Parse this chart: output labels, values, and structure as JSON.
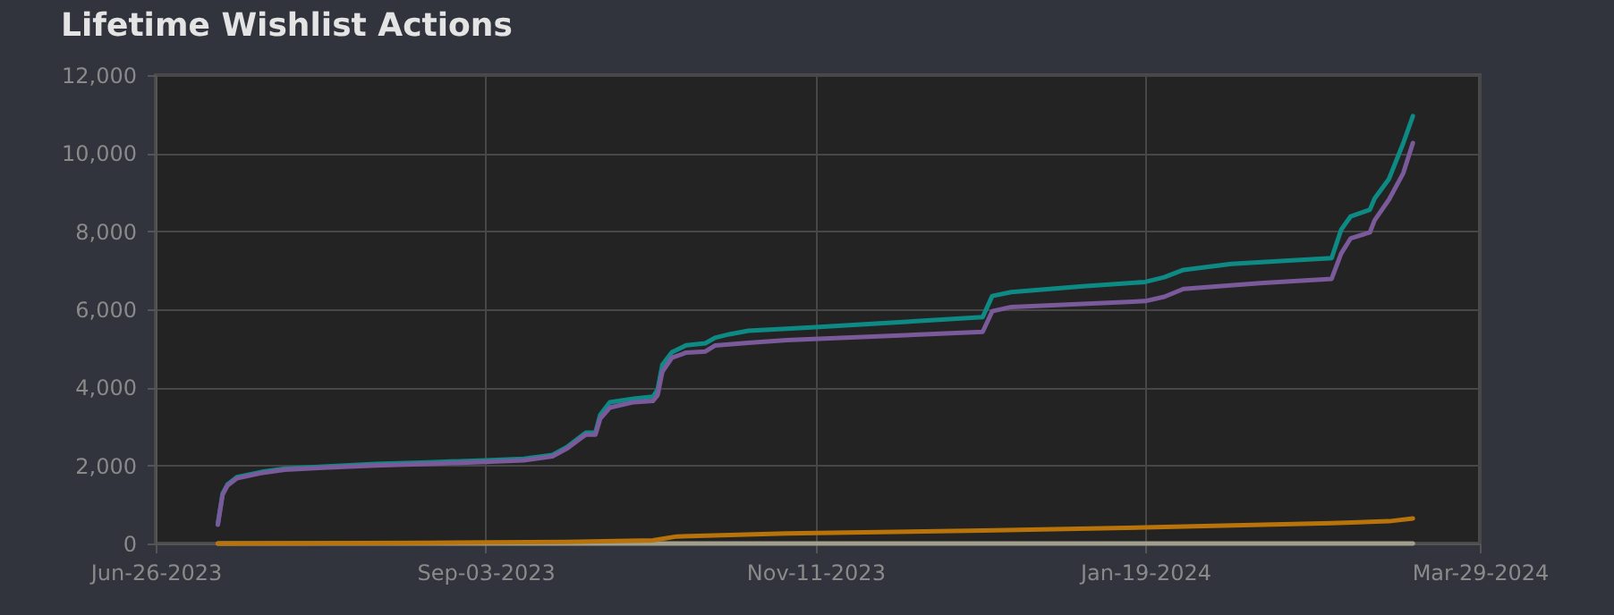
{
  "chart_data": {
    "type": "line",
    "title": "Lifetime Wishlist Actions",
    "xlim": [
      "2023-06-26",
      "2024-03-29"
    ],
    "xticks": [
      {
        "value": "2023-06-26",
        "label": "Jun-26-2023"
      },
      {
        "value": "2023-09-03",
        "label": "Sep-03-2023"
      },
      {
        "value": "2023-11-11",
        "label": "Nov-11-2023"
      },
      {
        "value": "2024-01-19",
        "label": "Jan-19-2024"
      },
      {
        "value": "2024-03-29",
        "label": "Mar-29-2024"
      }
    ],
    "ylim": [
      0,
      12000
    ],
    "yticks": [
      0,
      {
        "value": 2000,
        "label": "2,000"
      },
      {
        "value": 4000,
        "label": "4,000"
      },
      {
        "value": 6000,
        "label": "6,000"
      },
      {
        "value": 8000,
        "label": "8,000"
      },
      {
        "value": 10000,
        "label": "10,000"
      },
      {
        "value": 12000,
        "label": "12,000"
      }
    ],
    "grid": true,
    "marker": "none",
    "line_style": "solid",
    "series": [
      {
        "color": "#a39f8e",
        "x": [
          "2023-07-09",
          "2024-03-15"
        ],
        "values": [
          0,
          0
        ]
      },
      {
        "color": "#b8730a",
        "x": [
          "2023-07-09",
          "2023-08-22",
          "2023-09-20",
          "2023-10-08",
          "2023-10-13",
          "2023-11-05",
          "2023-12-16",
          "2024-01-19",
          "2024-02-27",
          "2024-03-10",
          "2024-03-15"
        ],
        "values": [
          0,
          20,
          40,
          80,
          180,
          260,
          330,
          410,
          520,
          570,
          640
        ]
      },
      {
        "color": "#0e8a85",
        "x": [
          "2023-07-09",
          "2023-07-10",
          "2023-07-11",
          "2023-07-13",
          "2023-07-18",
          "2023-07-23",
          "2023-07-31",
          "2023-08-11",
          "2023-08-22",
          "2023-09-03",
          "2023-09-11",
          "2023-09-17",
          "2023-09-20",
          "2023-09-23",
          "2023-09-24",
          "2023-09-26",
          "2023-09-27",
          "2023-09-29",
          "2023-10-04",
          "2023-10-08",
          "2023-10-09",
          "2023-10-10",
          "2023-10-12",
          "2023-10-15",
          "2023-10-19",
          "2023-10-21",
          "2023-10-24",
          "2023-10-28",
          "2023-11-05",
          "2023-11-11",
          "2023-11-30",
          "2023-12-16",
          "2023-12-18",
          "2023-12-22",
          "2024-01-06",
          "2024-01-19",
          "2024-01-23",
          "2024-01-27",
          "2024-02-06",
          "2024-02-18",
          "2024-02-27",
          "2024-02-29",
          "2024-03-02",
          "2024-03-06",
          "2024-03-07",
          "2024-03-10",
          "2024-03-13",
          "2024-03-15"
        ],
        "values": [
          500,
          1280,
          1510,
          1700,
          1830,
          1920,
          1970,
          2040,
          2080,
          2130,
          2170,
          2270,
          2470,
          2750,
          2840,
          2840,
          3300,
          3620,
          3710,
          3760,
          3940,
          4580,
          4900,
          5080,
          5130,
          5270,
          5360,
          5450,
          5500,
          5540,
          5680,
          5800,
          6340,
          6440,
          6590,
          6700,
          6820,
          7010,
          7160,
          7250,
          7310,
          8040,
          8380,
          8550,
          8840,
          9340,
          10260,
          10950
        ]
      },
      {
        "color": "#7a5a9a",
        "x": [
          "2023-07-09",
          "2023-07-10",
          "2023-07-11",
          "2023-07-13",
          "2023-07-18",
          "2023-07-23",
          "2023-07-31",
          "2023-08-11",
          "2023-08-22",
          "2023-09-03",
          "2023-09-11",
          "2023-09-17",
          "2023-09-20",
          "2023-09-23",
          "2023-09-24",
          "2023-09-26",
          "2023-09-27",
          "2023-09-29",
          "2023-10-04",
          "2023-10-08",
          "2023-10-09",
          "2023-10-10",
          "2023-10-12",
          "2023-10-15",
          "2023-10-19",
          "2023-10-21",
          "2023-10-28",
          "2023-11-05",
          "2023-12-16",
          "2023-12-18",
          "2023-12-22",
          "2024-01-19",
          "2024-01-23",
          "2024-01-27",
          "2024-02-12",
          "2024-02-27",
          "2024-02-29",
          "2024-03-02",
          "2024-03-06",
          "2024-03-07",
          "2024-03-10",
          "2024-03-13",
          "2024-03-15"
        ],
        "values": [
          480,
          1250,
          1480,
          1670,
          1800,
          1890,
          1940,
          2000,
          2040,
          2090,
          2130,
          2230,
          2430,
          2700,
          2790,
          2790,
          3200,
          3480,
          3620,
          3650,
          3800,
          4400,
          4760,
          4890,
          4920,
          5070,
          5140,
          5210,
          5420,
          5950,
          6060,
          6210,
          6320,
          6520,
          6670,
          6780,
          7430,
          7820,
          7970,
          8280,
          8810,
          9490,
          10260
        ]
      }
    ]
  }
}
